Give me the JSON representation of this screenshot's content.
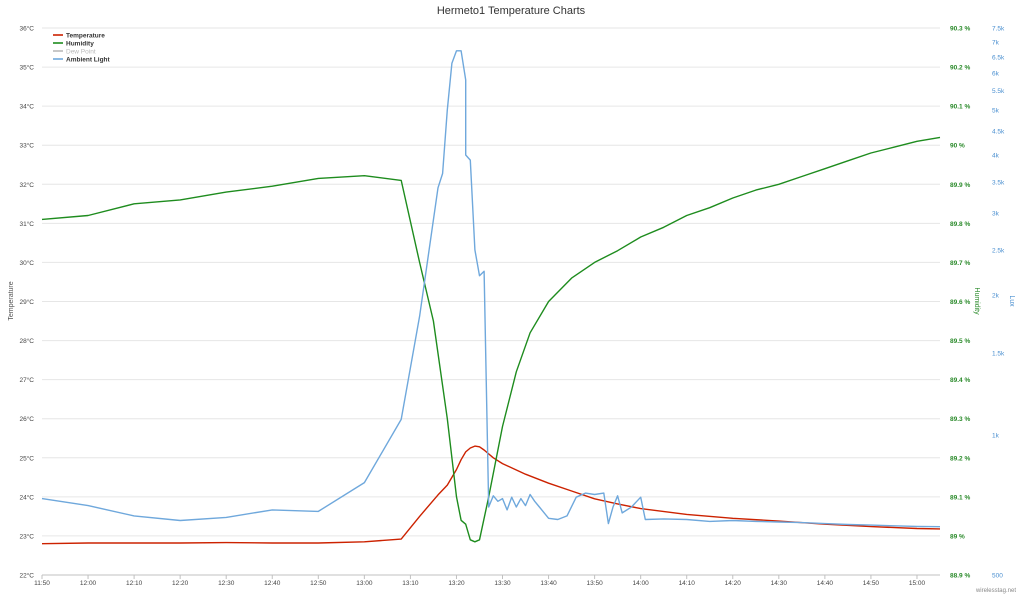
{
  "chart_data": {
    "type": "line",
    "title": "Hermeto1 Temperature Charts",
    "credit": "wirelesstag.net",
    "legend_position": "top-left",
    "grid": true,
    "x_ticks": [
      "11:50",
      "12:00",
      "12:10",
      "12:20",
      "12:30",
      "12:40",
      "12:50",
      "13:00",
      "13:10",
      "13:20",
      "13:30",
      "13:40",
      "13:50",
      "14:00",
      "14:10",
      "14:20",
      "14:30",
      "14:40",
      "14:50",
      "15:00"
    ],
    "xlim": [
      "11:50",
      "15:05"
    ],
    "axes": {
      "temperature": {
        "label": "Temperature",
        "ylim": [
          22,
          36
        ],
        "ticks": [
          "22°C",
          "23°C",
          "24°C",
          "25°C",
          "26°C",
          "27°C",
          "28°C",
          "29°C",
          "30°C",
          "31°C",
          "32°C",
          "33°C",
          "34°C",
          "35°C",
          "36°C"
        ]
      },
      "humidity": {
        "label": "Humidity",
        "ylim": [
          88.9,
          90.3
        ],
        "ticks": [
          "88.9 %",
          "89 %",
          "89.1 %",
          "89.2 %",
          "89.3 %",
          "89.4 %",
          "89.5 %",
          "89.6 %",
          "89.7 %",
          "89.8 %",
          "89.9 %",
          "90 %",
          "90.1 %",
          "90.2 %",
          "90.3 %"
        ]
      },
      "lux": {
        "label": "Lux",
        "scale": "log",
        "ylim": [
          500,
          7500
        ],
        "ticks": [
          {
            "label": "500",
            "value": 500
          },
          {
            "label": "1k",
            "value": 1000
          },
          {
            "label": "1.5k",
            "value": 1500
          },
          {
            "label": "2k",
            "value": 2000
          },
          {
            "label": "2.5k",
            "value": 2500
          },
          {
            "label": "3k",
            "value": 3000
          },
          {
            "label": "3.5k",
            "value": 3500
          },
          {
            "label": "4k",
            "value": 4000
          },
          {
            "label": "4.5k",
            "value": 4500
          },
          {
            "label": "5k",
            "value": 5000
          },
          {
            "label": "5.5k",
            "value": 5500
          },
          {
            "label": "6k",
            "value": 6000
          },
          {
            "label": "6.5k",
            "value": 6500
          },
          {
            "label": "7k",
            "value": 7000
          },
          {
            "label": "7.5k",
            "value": 7500
          }
        ]
      }
    },
    "series": [
      {
        "name": "Temperature",
        "axis": "temperature",
        "color": "#cc2200",
        "points": [
          [
            "11:50",
            22.8
          ],
          [
            "12:00",
            22.82
          ],
          [
            "12:10",
            22.82
          ],
          [
            "12:20",
            22.82
          ],
          [
            "12:30",
            22.83
          ],
          [
            "12:40",
            22.82
          ],
          [
            "12:50",
            22.82
          ],
          [
            "13:00",
            22.85
          ],
          [
            "13:08",
            22.92
          ],
          [
            "13:12",
            23.5
          ],
          [
            "13:16",
            24.05
          ],
          [
            "13:18",
            24.3
          ],
          [
            "13:20",
            24.7
          ],
          [
            "13:21",
            24.95
          ],
          [
            "13:22",
            25.15
          ],
          [
            "13:23",
            25.25
          ],
          [
            "13:24",
            25.3
          ],
          [
            "13:25",
            25.28
          ],
          [
            "13:26",
            25.2
          ],
          [
            "13:28",
            25.0
          ],
          [
            "13:30",
            24.85
          ],
          [
            "13:35",
            24.58
          ],
          [
            "13:40",
            24.35
          ],
          [
            "13:45",
            24.15
          ],
          [
            "13:50",
            23.95
          ],
          [
            "13:55",
            23.82
          ],
          [
            "14:00",
            23.7
          ],
          [
            "14:10",
            23.55
          ],
          [
            "14:20",
            23.45
          ],
          [
            "14:30",
            23.38
          ],
          [
            "14:40",
            23.3
          ],
          [
            "14:50",
            23.24
          ],
          [
            "15:00",
            23.19
          ],
          [
            "15:05",
            23.18
          ]
        ]
      },
      {
        "name": "Humidity",
        "axis": "humidity",
        "color": "#1e8c1e",
        "points": [
          [
            "11:50",
            89.81
          ],
          [
            "12:00",
            89.82
          ],
          [
            "12:10",
            89.85
          ],
          [
            "12:20",
            89.86
          ],
          [
            "12:30",
            89.88
          ],
          [
            "12:40",
            89.895
          ],
          [
            "12:50",
            89.915
          ],
          [
            "13:00",
            89.922
          ],
          [
            "13:08",
            89.91
          ],
          [
            "13:12",
            89.7
          ],
          [
            "13:15",
            89.55
          ],
          [
            "13:18",
            89.3
          ],
          [
            "13:20",
            89.1
          ],
          [
            "13:21",
            89.04
          ],
          [
            "13:22",
            89.03
          ],
          [
            "13:23",
            88.99
          ],
          [
            "13:24",
            88.985
          ],
          [
            "13:25",
            88.99
          ],
          [
            "13:27",
            89.1
          ],
          [
            "13:30",
            89.28
          ],
          [
            "13:33",
            89.42
          ],
          [
            "13:36",
            89.52
          ],
          [
            "13:40",
            89.6
          ],
          [
            "13:45",
            89.66
          ],
          [
            "13:50",
            89.7
          ],
          [
            "13:55",
            89.73
          ],
          [
            "14:00",
            89.765
          ],
          [
            "14:05",
            89.79
          ],
          [
            "14:10",
            89.82
          ],
          [
            "14:15",
            89.84
          ],
          [
            "14:20",
            89.865
          ],
          [
            "14:25",
            89.885
          ],
          [
            "14:30",
            89.9
          ],
          [
            "14:35",
            89.92
          ],
          [
            "14:40",
            89.94
          ],
          [
            "14:45",
            89.96
          ],
          [
            "14:50",
            89.98
          ],
          [
            "14:55",
            89.995
          ],
          [
            "15:00",
            90.01
          ],
          [
            "15:05",
            90.02
          ]
        ]
      },
      {
        "name": "Dew Point",
        "axis": "temperature",
        "color": "#bbbbbb",
        "hidden": true,
        "points": []
      },
      {
        "name": "Ambient Light",
        "axis": "lux",
        "color": "#6fa8dc",
        "points": [
          [
            "11:50",
            730
          ],
          [
            "12:00",
            705
          ],
          [
            "12:10",
            670
          ],
          [
            "12:20",
            655
          ],
          [
            "12:30",
            665
          ],
          [
            "12:40",
            690
          ],
          [
            "12:50",
            685
          ],
          [
            "13:00",
            790
          ],
          [
            "13:08",
            1080
          ],
          [
            "13:12",
            1800
          ],
          [
            "13:16",
            3400
          ],
          [
            "13:17",
            3650
          ],
          [
            "13:18",
            5000
          ],
          [
            "13:19",
            6300
          ],
          [
            "13:20",
            6700
          ],
          [
            "13:21",
            6700
          ],
          [
            "13:22",
            5800
          ],
          [
            "13:22",
            4000
          ],
          [
            "13:23",
            3900
          ],
          [
            "13:24",
            2500
          ],
          [
            "13:25",
            2200
          ],
          [
            "13:26",
            2250
          ],
          [
            "13:27",
            700
          ],
          [
            "13:28",
            740
          ],
          [
            "13:29",
            720
          ],
          [
            "13:30",
            730
          ],
          [
            "13:31",
            690
          ],
          [
            "13:32",
            735
          ],
          [
            "13:33",
            700
          ],
          [
            "13:34",
            730
          ],
          [
            "13:35",
            705
          ],
          [
            "13:36",
            745
          ],
          [
            "13:37",
            720
          ],
          [
            "13:38",
            700
          ],
          [
            "13:40",
            662
          ],
          [
            "13:42",
            658
          ],
          [
            "13:44",
            670
          ],
          [
            "13:46",
            735
          ],
          [
            "13:48",
            750
          ],
          [
            "13:50",
            745
          ],
          [
            "13:52",
            750
          ],
          [
            "13:53",
            645
          ],
          [
            "13:54",
            700
          ],
          [
            "13:55",
            740
          ],
          [
            "13:56",
            680
          ],
          [
            "13:58",
            700
          ],
          [
            "14:00",
            735
          ],
          [
            "14:01",
            658
          ],
          [
            "14:05",
            660
          ],
          [
            "14:10",
            658
          ],
          [
            "14:15",
            652
          ],
          [
            "14:20",
            655
          ],
          [
            "14:25",
            652
          ],
          [
            "14:30",
            650
          ],
          [
            "14:35",
            648
          ],
          [
            "14:40",
            645
          ],
          [
            "14:45",
            642
          ],
          [
            "14:50",
            640
          ],
          [
            "14:55",
            638
          ],
          [
            "15:00",
            636
          ],
          [
            "15:05",
            635
          ]
        ]
      }
    ]
  }
}
